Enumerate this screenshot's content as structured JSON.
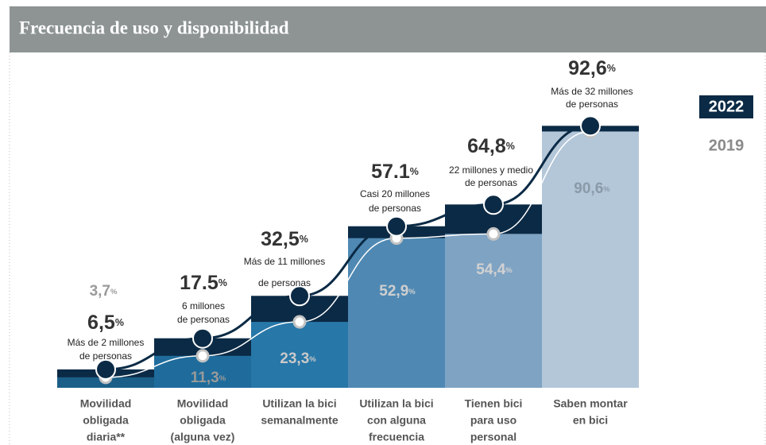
{
  "title": "Frecuencia de uso y disponibilidad",
  "chart_data": {
    "type": "step",
    "unit": "%",
    "categories": [
      [
        "Movilidad",
        "obligada",
        "diaria**"
      ],
      [
        "Movilidad",
        "obligada",
        "(alguna vez)"
      ],
      [
        "Utilizan  la bici",
        "semanalmente"
      ],
      [
        "Utilizan  la bici",
        "con alguna",
        "frecuencia"
      ],
      [
        "Tienen bici",
        "para uso",
        "personal"
      ],
      [
        "Saben montar",
        "en bici"
      ]
    ],
    "series": [
      {
        "name": "2022",
        "color": "#0b2a45",
        "values": [
          6.5,
          17.5,
          32.5,
          57.1,
          64.8,
          92.6
        ],
        "value_labels": [
          "6,5",
          "17.5",
          "32,5",
          "57.1",
          "64,8",
          "92,6"
        ]
      },
      {
        "name": "2019",
        "colors": [
          "#1b5f88",
          "#1f6c9c",
          "#2777a8",
          "#4f89b3",
          "#7fa3c3",
          "#b4c7d9"
        ],
        "values": [
          3.7,
          11.3,
          23.3,
          52.9,
          54.4,
          90.6
        ],
        "value_labels": [
          "3,7",
          "11,3",
          "23,3",
          "52,9",
          "54,4",
          "90,6"
        ]
      }
    ],
    "annotations": [
      [
        "Más de 2 millones",
        "de personas"
      ],
      [
        "6 millones",
        "de personas"
      ],
      [
        "Más de 11 millones",
        "de personas"
      ],
      [
        "Casi 20 millones",
        "de personas"
      ],
      [
        "22 millones y medio",
        "de personas"
      ],
      [
        "Más de 32 millones",
        "de personas"
      ]
    ],
    "ylim": [
      0,
      100
    ]
  }
}
